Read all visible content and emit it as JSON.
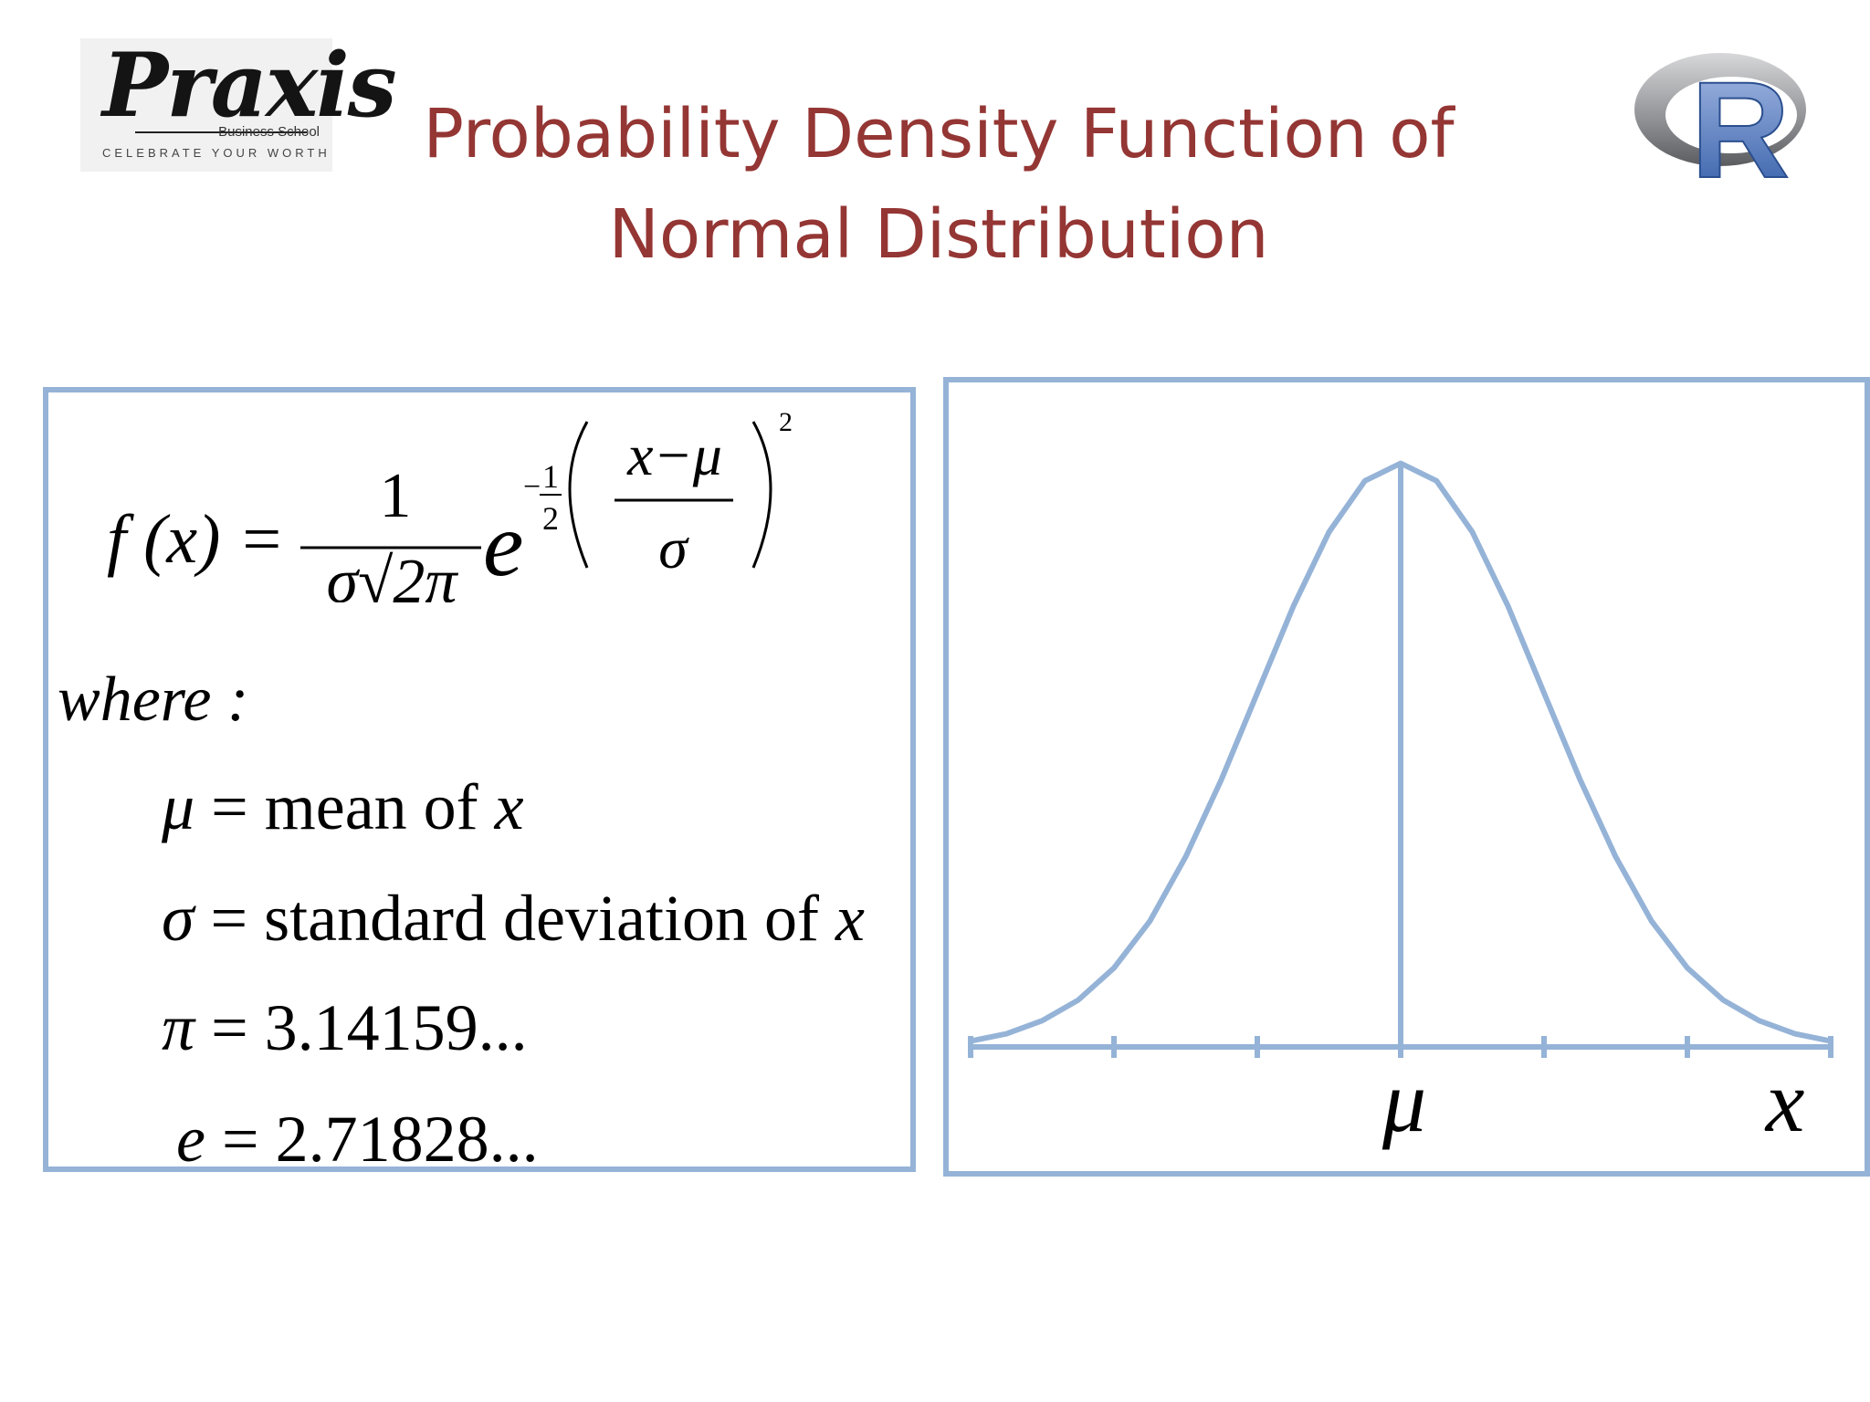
{
  "logos": {
    "left": {
      "brand": "Praxis",
      "sub": "Business School",
      "tagline": "CELEBRATE YOUR WORTH",
      "icon": "praxis-logo"
    },
    "right": {
      "letter": "R",
      "icon": "r-logo"
    }
  },
  "title": {
    "line1": "Probability Density Function of",
    "line2": "Normal Distribution"
  },
  "formula": {
    "lhs": "f (x) =",
    "numerator": "1",
    "denominator": "σ√2π",
    "base": "e",
    "exp_sign": "−",
    "exp_num": "1",
    "exp_den": "2",
    "inner_num": "x−μ",
    "inner_den": "σ",
    "power": "2"
  },
  "definitions": {
    "where": "where :",
    "items": [
      {
        "symbol": "μ",
        "text": "= mean  of ",
        "var": "x"
      },
      {
        "symbol": "σ",
        "text": "= standard  deviation  of ",
        "var": "x"
      },
      {
        "symbol": "π",
        "text": "= 3.14159...",
        "var": ""
      },
      {
        "symbol": "e",
        "text": "= 2.71828...",
        "var": ""
      }
    ]
  },
  "chart_data": {
    "type": "line",
    "title": "",
    "series": [
      {
        "x": [
          -3.0,
          -2.75,
          -2.5,
          -2.25,
          -2.0,
          -1.75,
          -1.5,
          -1.25,
          -1.0,
          -0.75,
          -0.5,
          -0.25,
          0.0,
          0.25,
          0.5,
          0.75,
          1.0,
          1.25,
          1.5,
          1.75,
          2.0,
          2.25,
          2.5,
          2.75,
          3.0
        ],
        "values": [
          0.004,
          0.009,
          0.018,
          0.032,
          0.054,
          0.086,
          0.13,
          0.183,
          0.242,
          0.301,
          0.352,
          0.387,
          0.399,
          0.387,
          0.352,
          0.301,
          0.242,
          0.183,
          0.13,
          0.086,
          0.054,
          0.032,
          0.018,
          0.009,
          0.004
        ]
      }
    ],
    "xlim": [
      -3,
      3
    ],
    "ylim": [
      0,
      0.4
    ],
    "x_ticks": [
      -3,
      -2,
      -1,
      0,
      1,
      2,
      3
    ],
    "mean_line": 0,
    "labels": {
      "mean": "μ",
      "x_axis": "x"
    },
    "grid": false,
    "color": "#95b3d7"
  }
}
